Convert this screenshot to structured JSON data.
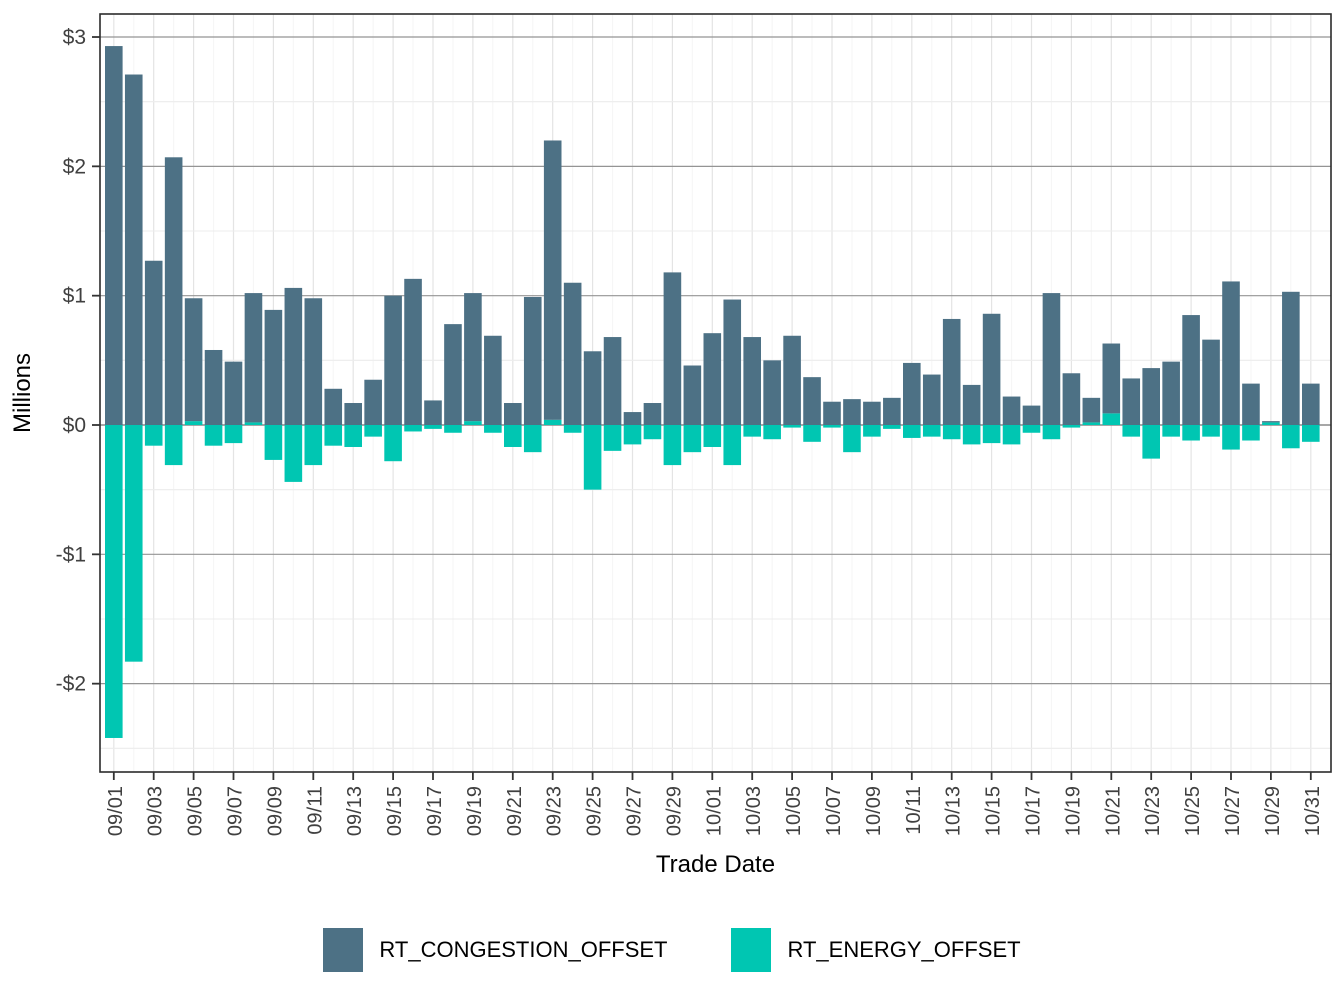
{
  "chart_data": {
    "type": "bar",
    "title": "",
    "xlabel": "Trade Date",
    "ylabel": "Millions",
    "legend_position": "bottom",
    "grid": true,
    "stacked": true,
    "ylim": [
      -2.68,
      3.18
    ],
    "y_ticks": [
      {
        "value": 3,
        "label": "$3"
      },
      {
        "value": 2,
        "label": "$2"
      },
      {
        "value": 1,
        "label": "$1"
      },
      {
        "value": 0,
        "label": "$0"
      },
      {
        "value": -1,
        "label": "-$1"
      },
      {
        "value": -2,
        "label": "-$2"
      }
    ],
    "x_tick_every": 2,
    "categories": [
      "09/01",
      "09/02",
      "09/03",
      "09/04",
      "09/05",
      "09/06",
      "09/07",
      "09/08",
      "09/09",
      "09/10",
      "09/11",
      "09/12",
      "09/13",
      "09/14",
      "09/15",
      "09/16",
      "09/17",
      "09/18",
      "09/19",
      "09/20",
      "09/21",
      "09/22",
      "09/23",
      "09/24",
      "09/25",
      "09/26",
      "09/27",
      "09/28",
      "09/29",
      "09/30",
      "10/01",
      "10/02",
      "10/03",
      "10/04",
      "10/05",
      "10/06",
      "10/07",
      "10/08",
      "10/09",
      "10/10",
      "10/11",
      "10/12",
      "10/13",
      "10/14",
      "10/15",
      "10/16",
      "10/17",
      "10/18",
      "10/19",
      "10/20",
      "10/21",
      "10/22",
      "10/23",
      "10/24",
      "10/25",
      "10/26",
      "10/27",
      "10/28",
      "10/29",
      "10/30",
      "10/31"
    ],
    "series": [
      {
        "name": "RT_CONGESTION_OFFSET",
        "color": "#4d7185",
        "values": [
          2.93,
          2.71,
          1.27,
          2.07,
          0.95,
          0.58,
          0.49,
          1.0,
          0.89,
          1.06,
          0.98,
          0.28,
          0.17,
          0.35,
          1.0,
          1.13,
          0.19,
          0.78,
          0.99,
          0.69,
          0.17,
          0.99,
          2.16,
          1.1,
          0.57,
          0.68,
          0.1,
          0.17,
          1.18,
          0.46,
          0.71,
          0.97,
          0.68,
          0.5,
          0.69,
          0.37,
          0.18,
          0.2,
          0.18,
          0.21,
          0.48,
          0.39,
          0.82,
          0.31,
          0.86,
          0.22,
          0.15,
          1.02,
          0.4,
          0.19,
          0.54,
          0.36,
          0.44,
          0.49,
          0.85,
          0.66,
          1.11,
          0.32,
          0.01,
          1.03,
          0.32
        ]
      },
      {
        "name": "RT_ENERGY_OFFSET",
        "color": "#00c6b2",
        "values": [
          -2.42,
          -1.83,
          -0.16,
          -0.31,
          0.03,
          -0.16,
          -0.14,
          0.02,
          -0.27,
          -0.44,
          -0.31,
          -0.16,
          -0.17,
          -0.09,
          -0.28,
          -0.05,
          -0.03,
          -0.06,
          0.03,
          -0.06,
          -0.17,
          -0.21,
          0.04,
          -0.06,
          -0.5,
          -0.2,
          -0.15,
          -0.11,
          -0.31,
          -0.21,
          -0.17,
          -0.31,
          -0.09,
          -0.11,
          -0.02,
          -0.13,
          -0.02,
          -0.21,
          -0.09,
          -0.03,
          -0.1,
          -0.09,
          -0.11,
          -0.15,
          -0.14,
          -0.15,
          -0.06,
          -0.11,
          -0.02,
          0.02,
          0.09,
          -0.09,
          -0.26,
          -0.09,
          -0.12,
          -0.09,
          -0.19,
          -0.12,
          0.02,
          -0.18,
          -0.13
        ]
      }
    ]
  },
  "legend": {
    "items": [
      {
        "label": "RT_CONGESTION_OFFSET",
        "color": "#4d7185"
      },
      {
        "label": "RT_ENERGY_OFFSET",
        "color": "#00c6b2"
      }
    ]
  }
}
